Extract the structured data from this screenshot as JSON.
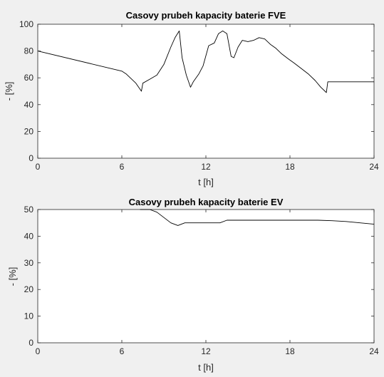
{
  "chart_data": [
    {
      "type": "line",
      "title": "Casovy prubeh kapacity baterie FVE",
      "xlabel": "t [h]",
      "ylabel": "- [%]",
      "xlim": [
        0,
        24
      ],
      "ylim": [
        0,
        100
      ],
      "xticks": [
        0,
        6,
        12,
        18,
        24
      ],
      "yticks": [
        0,
        20,
        40,
        60,
        80,
        100
      ],
      "grid": false,
      "series": [
        {
          "x": [
            0,
            6.0,
            6.3,
            7.0,
            7.4,
            7.5,
            8.0,
            8.5,
            9.0,
            9.5,
            9.8,
            10.1,
            10.3,
            10.6,
            10.9,
            11.1,
            11.5,
            11.8,
            12.2,
            12.6,
            12.9,
            13.2,
            13.5,
            13.8,
            14.0,
            14.3,
            14.6,
            15.0,
            15.4,
            15.8,
            16.2,
            16.6,
            17.0,
            17.4,
            17.9,
            18.3,
            18.8,
            19.3,
            19.8,
            20.2,
            20.5,
            20.6,
            20.7,
            21.0,
            24.0
          ],
          "y": [
            80,
            65,
            63,
            56,
            50,
            56,
            59,
            62,
            70,
            83,
            90,
            95,
            75,
            62,
            53,
            57,
            63,
            69,
            84,
            86,
            93,
            95,
            93,
            76,
            75,
            83,
            88,
            87,
            88,
            90,
            89,
            85,
            82,
            78,
            74,
            71,
            67,
            63,
            58,
            53,
            50,
            49,
            57,
            57,
            57
          ]
        }
      ]
    },
    {
      "type": "line",
      "title": "Casovy prubeh kapacity baterie EV",
      "xlabel": "t [h]",
      "ylabel": "- [%]",
      "xlim": [
        0,
        24
      ],
      "ylim": [
        0,
        50
      ],
      "xticks": [
        0,
        6,
        12,
        18,
        24
      ],
      "yticks": [
        0,
        10,
        20,
        30,
        40,
        50
      ],
      "grid": false,
      "series": [
        {
          "x": [
            7.3,
            8.0,
            8.5,
            9.0,
            9.5,
            10.0,
            10.5,
            11.0,
            12.0,
            13.0,
            13.5,
            14.0,
            16.0,
            18.0,
            20.0,
            21.0,
            22.0,
            23.0,
            24.0
          ],
          "y": [
            50,
            50,
            49,
            47,
            45,
            44,
            45,
            45,
            45,
            45,
            46,
            46,
            46,
            46,
            46,
            45.8,
            45.5,
            45.0,
            44.5
          ]
        }
      ]
    }
  ]
}
